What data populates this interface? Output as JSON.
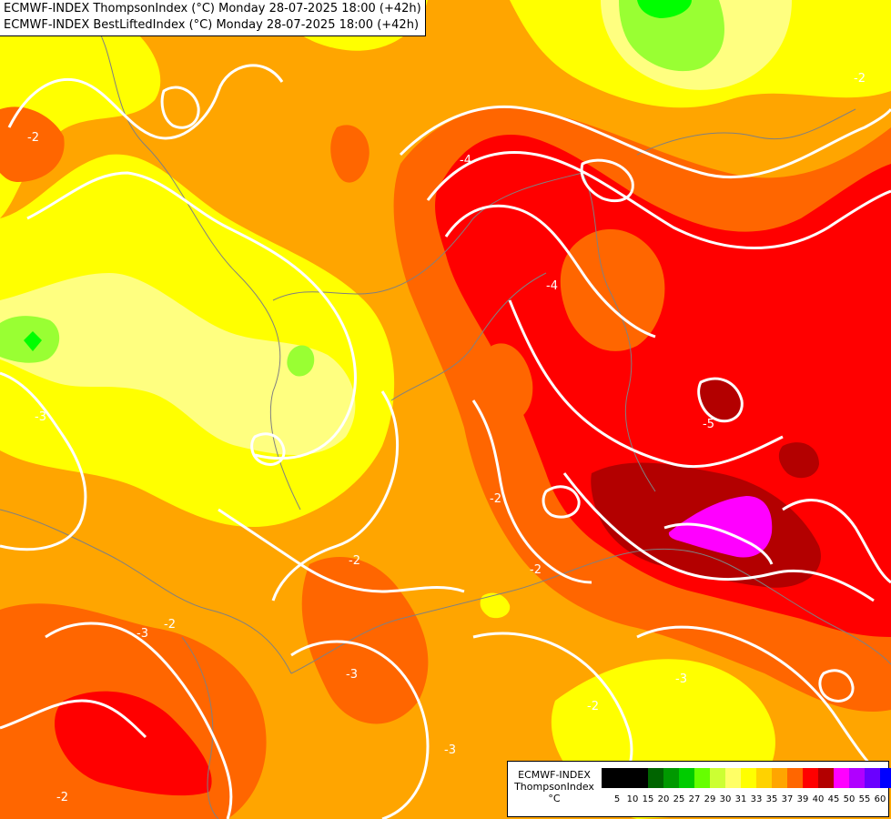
{
  "header": {
    "line1": "ECMWF-INDEX ThompsonIndex (°C) Monday 28-07-2025 18:00 (+42h)",
    "line2": "ECMWF-INDEX BestLiftedIndex (°C) Monday 28-07-2025 18:00 (+42h)"
  },
  "legend": {
    "title_line1": "ECMWF-INDEX",
    "title_line2": "ThompsonIndex",
    "unit": "°C",
    "ticks": [
      "5",
      "10",
      "15",
      "20",
      "25",
      "27",
      "29",
      "30",
      "31",
      "33",
      "35",
      "37",
      "39",
      "40",
      "45",
      "50",
      "55",
      "60"
    ],
    "colors": [
      "#000000",
      "#000000",
      "#000000",
      "#006400",
      "#009900",
      "#00cc00",
      "#66ff00",
      "#ccff33",
      "#ffff66",
      "#ffff00",
      "#ffd200",
      "#ffa500",
      "#ff6600",
      "#ff0000",
      "#b30000",
      "#ff00ff",
      "#b000ff",
      "#6a00ff",
      "#0000ff"
    ]
  },
  "map": {
    "colors": {
      "yellow": "#ffff00",
      "light_yellow": "#ffff80",
      "gold": "#ffd200",
      "orange": "#ffa500",
      "dark_orange": "#ff6600",
      "red": "#ff0000",
      "dark_red": "#b30000",
      "magenta": "#ff00ff",
      "green": "#99ff33",
      "bright_green": "#00ff00",
      "contour": "#ffffff",
      "border": "#808080"
    },
    "contour_labels": [
      "-2",
      "-2",
      "-3",
      "-4",
      "-4",
      "-5",
      "-2",
      "-2",
      "-2",
      "-3",
      "-2",
      "-3",
      "-3",
      "-2",
      "-2",
      "-3"
    ]
  }
}
